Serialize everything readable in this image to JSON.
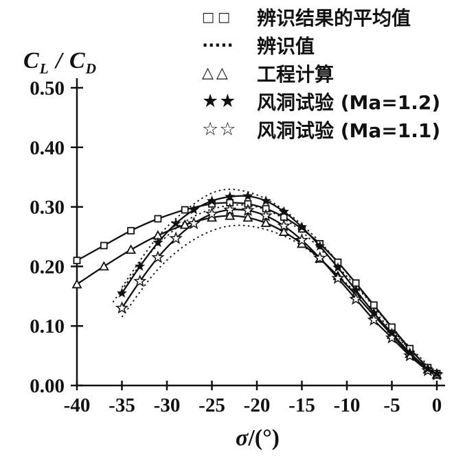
{
  "page": {
    "background": "#ffffff",
    "ink": "#111111"
  },
  "ylabel": {
    "c1": "C",
    "s1": "L",
    "sep": " / ",
    "c2": "C",
    "s2": "D"
  },
  "xlabel": {
    "sigma": "σ",
    "rest": "/(°)"
  },
  "legend": {
    "items": [
      {
        "symbol": "□□",
        "label": "辨识结果的平均值"
      },
      {
        "symbol": "·····",
        "label": "辨识值"
      },
      {
        "symbol": "△△",
        "label": "工程计算"
      },
      {
        "symbol": "★★",
        "label": "风洞试验 (Ma=1.2)"
      },
      {
        "symbol": "☆☆",
        "label": "风洞试验 (Ma=1.1)"
      }
    ]
  },
  "chart_data": {
    "type": "line",
    "title": "",
    "xlabel": "σ/(°)",
    "ylabel": "CL/CD",
    "xlim": [
      -40,
      0
    ],
    "ylim": [
      0,
      0.5
    ],
    "x_ticks": [
      -40,
      -35,
      -30,
      -25,
      -20,
      -15,
      -10,
      -5,
      0
    ],
    "y_ticks": [
      0.0,
      0.1,
      0.2,
      0.3,
      0.4,
      0.5
    ],
    "grid": false,
    "legend_position": "top-right",
    "series": [
      {
        "name": "辨识值 (upper)",
        "marker": "none",
        "line": "dotted",
        "x": [
          -35,
          -31,
          -27,
          -24,
          -21,
          -18,
          -15,
          -12,
          -9,
          -6,
          -3,
          0
        ],
        "y": [
          0.165,
          0.25,
          0.305,
          0.328,
          0.325,
          0.305,
          0.27,
          0.225,
          0.17,
          0.115,
          0.06,
          0.02
        ]
      },
      {
        "name": "辨识值 (middle)",
        "marker": "none",
        "line": "dotted",
        "x": [
          -36,
          -32,
          -28,
          -24,
          -20,
          -16,
          -12,
          -8,
          -4,
          0
        ],
        "y": [
          0.14,
          0.22,
          0.275,
          0.3,
          0.3,
          0.27,
          0.215,
          0.15,
          0.08,
          0.02
        ]
      },
      {
        "name": "辨识值 (lower)",
        "marker": "none",
        "line": "dotted",
        "x": [
          -35,
          -31,
          -27,
          -23,
          -19,
          -15,
          -11,
          -7,
          -3,
          0
        ],
        "y": [
          0.115,
          0.195,
          0.245,
          0.268,
          0.262,
          0.235,
          0.185,
          0.125,
          0.06,
          0.018
        ]
      },
      {
        "name": "辨识结果的平均值",
        "marker": "square",
        "line": "solid",
        "x": [
          -40,
          -37,
          -34,
          -31,
          -28,
          -25,
          -23,
          -21,
          -19,
          -17,
          -15,
          -13,
          -11,
          -9,
          -7,
          -5,
          -3,
          -1,
          0
        ],
        "y": [
          0.21,
          0.235,
          0.26,
          0.28,
          0.295,
          0.305,
          0.307,
          0.305,
          0.297,
          0.283,
          0.263,
          0.238,
          0.207,
          0.172,
          0.135,
          0.098,
          0.062,
          0.03,
          0.02
        ]
      },
      {
        "name": "工程计算",
        "marker": "triangle",
        "line": "solid",
        "x": [
          -40,
          -37,
          -34,
          -31,
          -28,
          -25,
          -23,
          -21,
          -19,
          -17,
          -15,
          -13,
          -11,
          -9,
          -7,
          -5,
          -3,
          -1,
          0
        ],
        "y": [
          0.17,
          0.2,
          0.228,
          0.252,
          0.27,
          0.282,
          0.285,
          0.282,
          0.273,
          0.258,
          0.238,
          0.213,
          0.184,
          0.152,
          0.118,
          0.085,
          0.053,
          0.027,
          0.018
        ]
      },
      {
        "name": "风洞试验 (Ma=1.1)",
        "marker": "star-open",
        "line": "solid",
        "x": [
          -35,
          -33,
          -31,
          -29,
          -27,
          -25,
          -23,
          -21,
          -19,
          -17,
          -15,
          -13,
          -11,
          -9,
          -7,
          -5,
          -3,
          -1,
          0
        ],
        "y": [
          0.13,
          0.175,
          0.215,
          0.247,
          0.272,
          0.288,
          0.295,
          0.294,
          0.285,
          0.268,
          0.244,
          0.214,
          0.18,
          0.145,
          0.11,
          0.08,
          0.05,
          0.025,
          0.018
        ]
      },
      {
        "name": "风洞试验 (Ma=1.2)",
        "marker": "star-filled",
        "line": "solid",
        "x": [
          -35,
          -33,
          -31,
          -29,
          -27,
          -25,
          -23,
          -21,
          -19,
          -17,
          -15,
          -13,
          -11,
          -9,
          -7,
          -5,
          -3,
          -1,
          0
        ],
        "y": [
          0.155,
          0.2,
          0.24,
          0.272,
          0.295,
          0.31,
          0.317,
          0.318,
          0.31,
          0.292,
          0.266,
          0.234,
          0.198,
          0.16,
          0.122,
          0.088,
          0.055,
          0.028,
          0.02
        ]
      }
    ]
  }
}
